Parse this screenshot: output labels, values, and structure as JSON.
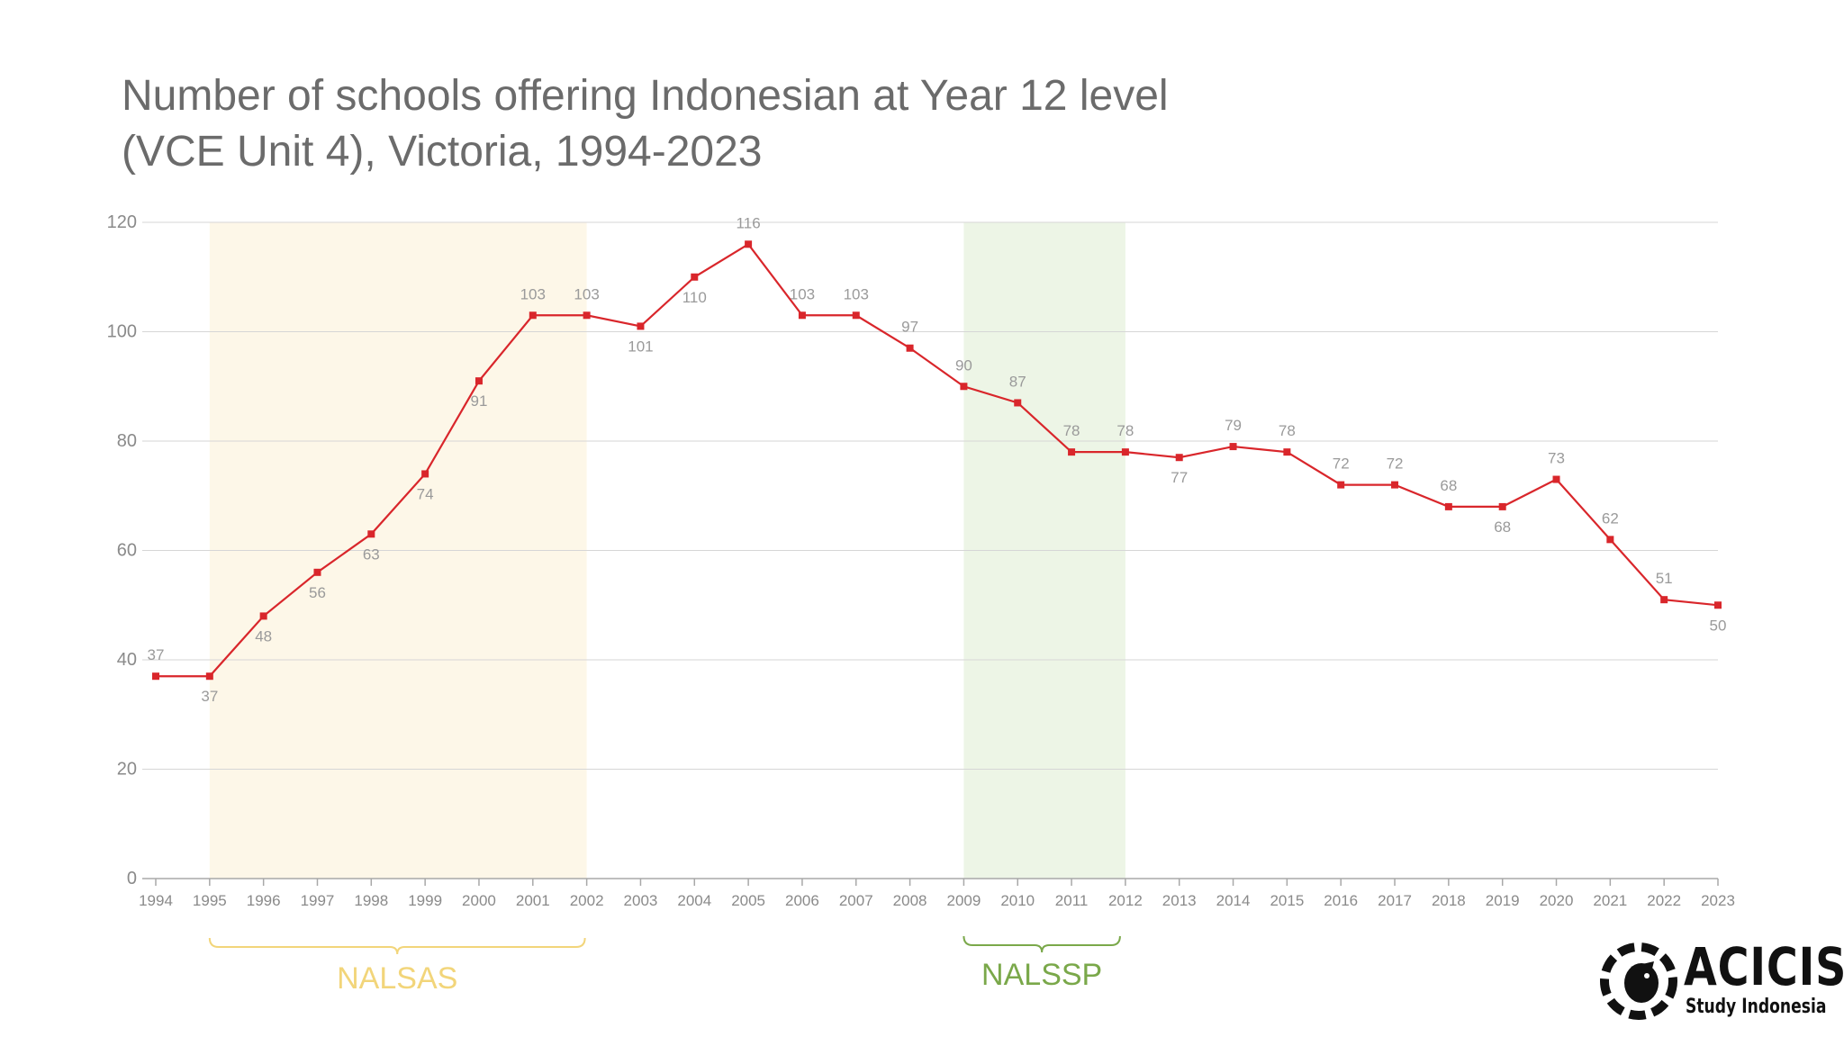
{
  "chart_data": {
    "type": "line",
    "title_line1": "Number of schools offering Indonesian at Year 12 level",
    "title_line2": "(VCE Unit 4), Victoria, 1994-2023",
    "xlabel": "",
    "ylabel": "",
    "ylim": [
      0,
      120
    ],
    "yticks": [
      0,
      20,
      40,
      60,
      80,
      100,
      120
    ],
    "grid": true,
    "x": [
      "1994",
      "1995",
      "1996",
      "1997",
      "1998",
      "1999",
      "2000",
      "2001",
      "2002",
      "2003",
      "2004",
      "2005",
      "2006",
      "2007",
      "2008",
      "2009",
      "2010",
      "2011",
      "2012",
      "2013",
      "2014",
      "2015",
      "2016",
      "2017",
      "2018",
      "2019",
      "2020",
      "2021",
      "2022",
      "2023"
    ],
    "series": [
      {
        "values": [
          37,
          37,
          48,
          56,
          63,
          74,
          91,
          103,
          103,
          101,
          110,
          116,
          103,
          103,
          97,
          90,
          87,
          78,
          78,
          77,
          79,
          78,
          72,
          72,
          68,
          68,
          73,
          62,
          51,
          50
        ]
      }
    ],
    "line_color": "#d9262b",
    "label_color": "#9a9a9a",
    "periods": [
      {
        "label": "NALSAS",
        "start": "1995",
        "end": "2002",
        "color": "#fdf7e8",
        "label_color": "#f2d57a"
      },
      {
        "label": "NALSSP",
        "start": "2009",
        "end": "2012",
        "color": "#edf5e6",
        "label_color": "#7aa84a"
      }
    ]
  },
  "logo": {
    "name": "ACICIS",
    "tagline": "Study Indonesia"
  }
}
